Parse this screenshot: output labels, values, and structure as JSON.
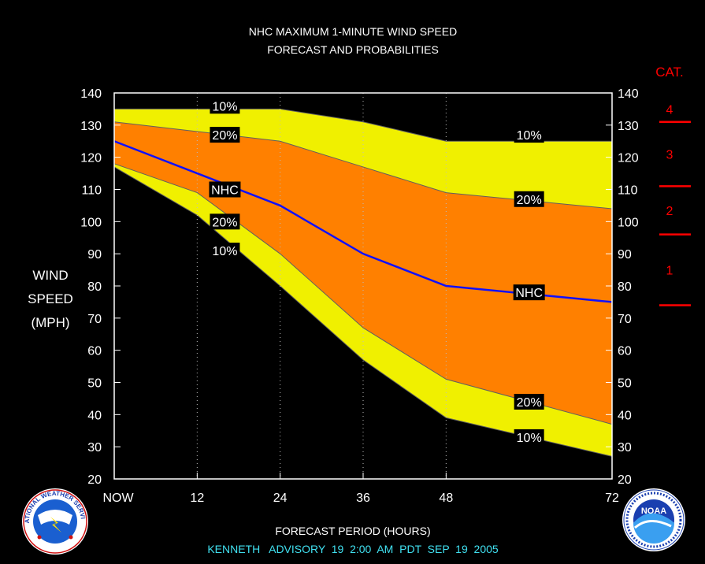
{
  "chart_data": {
    "type": "area",
    "title": "NHC MAXIMUM 1-MINUTE WIND SPEED",
    "subtitle": "FORECAST AND PROBABILITIES",
    "ylabel_lines": [
      "WIND",
      "SPEED",
      "(MPH)"
    ],
    "xlabel": "FORECAST PERIOD (HOURS)",
    "footer": "KENNETH   ADVISORY  19  2:00  AM  PDT  SEP  19  2005",
    "x": [
      0,
      12,
      24,
      36,
      48,
      72
    ],
    "x_tick_labels": [
      "NOW",
      "12",
      "24",
      "36",
      "48",
      "72"
    ],
    "xlim": [
      0,
      72
    ],
    "ylim": [
      20,
      140
    ],
    "y_ticks": [
      20,
      30,
      40,
      50,
      60,
      70,
      80,
      90,
      100,
      110,
      120,
      130,
      140
    ],
    "series": [
      {
        "name": "10%",
        "values": [
          135,
          135,
          135,
          131,
          125,
          125
        ],
        "role": "upper10"
      },
      {
        "name": "20%",
        "values": [
          131,
          128,
          125,
          117,
          109,
          104
        ],
        "role": "upper20"
      },
      {
        "name": "NHC",
        "values": [
          125,
          115,
          105,
          90,
          80,
          75
        ],
        "role": "nhc"
      },
      {
        "name": "20%",
        "values": [
          118,
          109,
          90,
          67,
          51,
          37
        ],
        "role": "lower20"
      },
      {
        "name": "10%",
        "values": [
          117,
          102,
          80,
          57,
          39,
          27
        ],
        "role": "lower10"
      }
    ],
    "band_labels": [
      {
        "text": "10%",
        "x": 16,
        "y": 136
      },
      {
        "text": "20%",
        "x": 16,
        "y": 127
      },
      {
        "text": "NHC",
        "x": 16,
        "y": 110
      },
      {
        "text": "20%",
        "x": 16,
        "y": 100
      },
      {
        "text": "10%",
        "x": 16,
        "y": 91
      },
      {
        "text": "10%",
        "x": 60,
        "y": 127
      },
      {
        "text": "20%",
        "x": 60,
        "y": 107
      },
      {
        "text": "NHC",
        "x": 60,
        "y": 78
      },
      {
        "text": "20%",
        "x": 60,
        "y": 44
      },
      {
        "text": "10%",
        "x": 60,
        "y": 33
      }
    ],
    "categories_scale": {
      "title": "CAT.",
      "thresholds": [
        74,
        96,
        111,
        131
      ],
      "labels": [
        {
          "text": "1",
          "y": 85
        },
        {
          "text": "2",
          "y": 103.5
        },
        {
          "text": "3",
          "y": 121
        },
        {
          "text": "4",
          "y": 135
        }
      ]
    },
    "colors": {
      "background": "#000000",
      "outer_band": "#f0f000",
      "inner_band": "#ff8000",
      "nhc_line": "#1010ff",
      "category": "#ff0000",
      "footer": "#40e0f0",
      "text": "#ffffff"
    }
  },
  "logos": {
    "left": {
      "name": "nws-logo",
      "text": "NATIONAL WEATHER SERVICE"
    },
    "right": {
      "name": "noaa-logo",
      "text": "NOAA"
    }
  }
}
